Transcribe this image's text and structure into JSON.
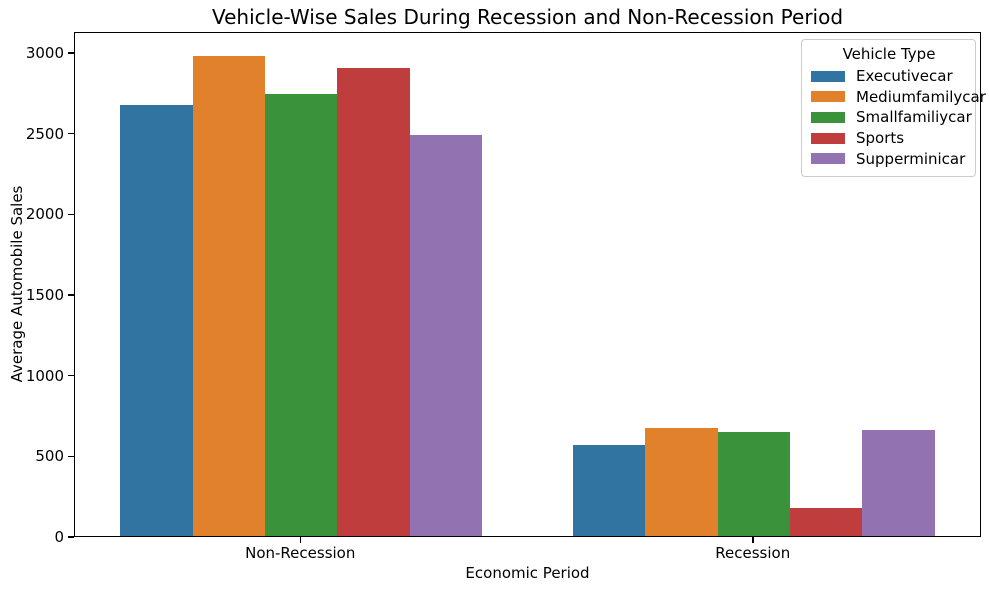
{
  "chart_data": {
    "type": "bar",
    "title": "Vehicle-Wise Sales During Recession and Non-Recession Period",
    "xlabel": "Economic Period",
    "ylabel": "Average Automobile Sales",
    "categories": [
      "Non-Recession",
      "Recession"
    ],
    "series": [
      {
        "name": "Executivecar",
        "color": "#3274a1",
        "values": [
          2685,
          565
        ]
      },
      {
        "name": "Mediumfamilycar",
        "color": "#e1812c",
        "values": [
          2985,
          675
        ]
      },
      {
        "name": "Smallfamiliycar",
        "color": "#3a923a",
        "values": [
          2752,
          650
        ]
      },
      {
        "name": "Sports",
        "color": "#c03d3e",
        "values": [
          2910,
          172
        ]
      },
      {
        "name": "Supperminicar",
        "color": "#9372b2",
        "values": [
          2495,
          658
        ]
      }
    ],
    "ylim": [
      0,
      3130
    ],
    "yticks": [
      0,
      500,
      1000,
      1500,
      2000,
      2500,
      3000
    ],
    "legend": {
      "title": "Vehicle Type",
      "position": "upper right"
    },
    "grid": false,
    "group_width_fraction": 0.8
  }
}
